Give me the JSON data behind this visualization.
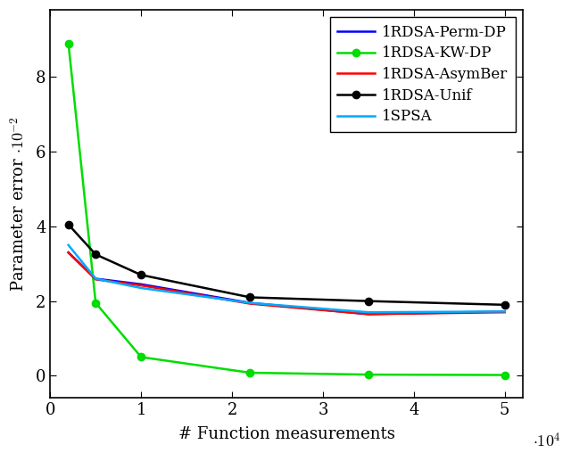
{
  "x_values": [
    2000,
    5000,
    10000,
    22000,
    35000,
    50000
  ],
  "series": [
    {
      "label": "1RDSA-Perm-DP",
      "color": "#0000ff",
      "linewidth": 1.8,
      "has_marker": false,
      "y": [
        3.3,
        2.6,
        2.45,
        1.95,
        1.65,
        1.72
      ]
    },
    {
      "label": "1RDSA-KW-DP",
      "color": "#00dd00",
      "linewidth": 1.8,
      "has_marker": true,
      "y": [
        8.9,
        1.95,
        0.5,
        0.08,
        0.03,
        0.02
      ]
    },
    {
      "label": "1RDSA-AsymBer",
      "color": "#ff0000",
      "linewidth": 1.8,
      "has_marker": false,
      "y": [
        3.3,
        2.58,
        2.42,
        1.93,
        1.65,
        1.7
      ]
    },
    {
      "label": "1RDSA-Unif",
      "color": "#000000",
      "linewidth": 1.8,
      "has_marker": true,
      "y": [
        4.05,
        3.25,
        2.7,
        2.1,
        2.0,
        1.9
      ]
    },
    {
      "label": "1SPSA",
      "color": "#00aaff",
      "linewidth": 1.8,
      "has_marker": false,
      "y": [
        3.5,
        2.6,
        2.35,
        1.95,
        1.7,
        1.72
      ]
    }
  ],
  "xlabel": "# Function measurements",
  "ylabel": "Parameter error $\\cdot 10^{-2}$",
  "xlim": [
    0,
    52000
  ],
  "ylim": [
    -0.6,
    9.8
  ],
  "xticks": [
    0,
    10000,
    20000,
    30000,
    40000,
    50000
  ],
  "xtick_labels": [
    "0",
    "1",
    "2",
    "3",
    "4",
    "5"
  ],
  "yticks": [
    0,
    2,
    4,
    6,
    8
  ],
  "ytick_labels": [
    "0",
    "2",
    "4",
    "6",
    "8"
  ],
  "marker_size": 6,
  "legend_loc": "upper right",
  "fontsize": 13,
  "tick_fontsize": 13
}
